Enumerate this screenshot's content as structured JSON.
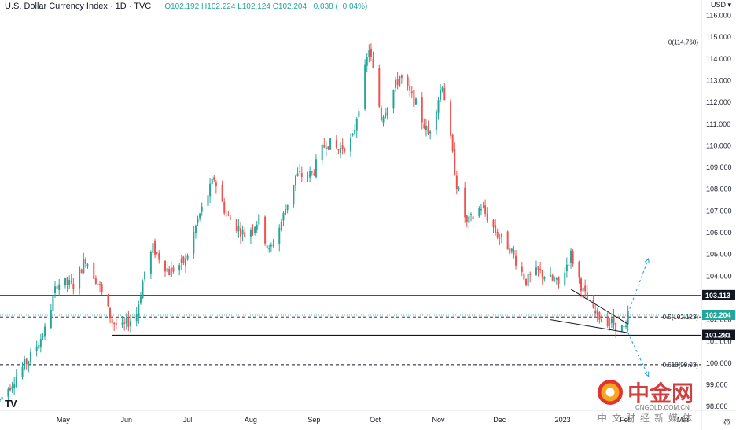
{
  "header": {
    "title": "U.S. Dollar Currency Index · 1D · TVC",
    "open": "O102.192",
    "high": "H102.224",
    "low": "L102.124",
    "close": "C102.204",
    "change": "−0.038 (−0.04%)"
  },
  "currency": "USD ▾",
  "watermark": {
    "brand": "中金网",
    "url": "CNGOLD.COM.CN",
    "sub": "中文财经新媒体"
  },
  "icons": {
    "settings": "gear-icon",
    "logo": "tradingview-logo"
  },
  "chart_data": {
    "type": "candlestick",
    "ylim": [
      97.9,
      116.2
    ],
    "y_ticks": [
      "116.000",
      "115.000",
      "114.000",
      "113.000",
      "112.000",
      "111.000",
      "110.000",
      "109.000",
      "108.000",
      "107.000",
      "106.000",
      "105.000",
      "104.000",
      "103.000",
      "102.000",
      "101.000",
      "100.000",
      "99.000",
      "98.000"
    ],
    "x_ticks": [
      {
        "label": "May",
        "date": "2022-05-01"
      },
      {
        "label": "Jun",
        "date": "2022-06-01"
      },
      {
        "label": "Jul",
        "date": "2022-07-01"
      },
      {
        "label": "Aug",
        "date": "2022-08-01"
      },
      {
        "label": "Sep",
        "date": "2022-09-01"
      },
      {
        "label": "Oct",
        "date": "2022-10-01"
      },
      {
        "label": "Nov",
        "date": "2022-11-01"
      },
      {
        "label": "Dec",
        "date": "2022-12-01"
      },
      {
        "label": "2023",
        "date": "2023-01-01"
      },
      {
        "label": "Feb",
        "date": "2023-02-01"
      },
      {
        "label": "Mar",
        "date": "2023-03-01"
      }
    ],
    "x_range": [
      "2022-03-31",
      "2023-03-10"
    ],
    "close_path": [
      [
        "2022-03-31",
        98.3
      ],
      [
        "2022-04-08",
        99.4
      ],
      [
        "2022-04-15",
        100.3
      ],
      [
        "2022-04-22",
        101.5
      ],
      [
        "2022-04-28",
        103.7
      ],
      [
        "2022-05-06",
        103.6
      ],
      [
        "2022-05-12",
        104.8
      ],
      [
        "2022-05-18",
        103.7
      ],
      [
        "2022-05-25",
        101.9
      ],
      [
        "2022-05-30",
        101.6
      ],
      [
        "2022-06-06",
        102.3
      ],
      [
        "2022-06-10",
        104.2
      ],
      [
        "2022-06-14",
        105.3
      ],
      [
        "2022-06-22",
        104.2
      ],
      [
        "2022-06-30",
        104.7
      ],
      [
        "2022-07-06",
        106.6
      ],
      [
        "2022-07-14",
        108.5
      ],
      [
        "2022-07-20",
        106.8
      ],
      [
        "2022-07-29",
        105.9
      ],
      [
        "2022-08-05",
        106.6
      ],
      [
        "2022-08-10",
        105.1
      ],
      [
        "2022-08-16",
        106.5
      ],
      [
        "2022-08-23",
        108.6
      ],
      [
        "2022-08-31",
        108.7
      ],
      [
        "2022-09-07",
        110.2
      ],
      [
        "2022-09-13",
        109.8
      ],
      [
        "2022-09-20",
        110.3
      ],
      [
        "2022-09-28",
        114.5
      ],
      [
        "2022-10-04",
        111.3
      ],
      [
        "2022-10-13",
        113.2
      ],
      [
        "2022-10-21",
        111.9
      ],
      [
        "2022-10-27",
        110.5
      ],
      [
        "2022-11-03",
        112.9
      ],
      [
        "2022-11-10",
        108.2
      ],
      [
        "2022-11-15",
        106.4
      ],
      [
        "2022-11-22",
        107.2
      ],
      [
        "2022-11-30",
        105.9
      ],
      [
        "2022-12-06",
        105.3
      ],
      [
        "2022-12-14",
        103.8
      ],
      [
        "2022-12-20",
        104.2
      ],
      [
        "2022-12-30",
        103.6
      ],
      [
        "2023-01-05",
        105.0
      ],
      [
        "2023-01-11",
        103.3
      ],
      [
        "2023-01-16",
        102.3
      ],
      [
        "2023-01-24",
        101.9
      ],
      [
        "2023-02-01",
        101.5
      ],
      [
        "2023-02-02",
        102.2
      ]
    ],
    "levels": [
      {
        "name": "fib-0",
        "value": 114.768,
        "label": "0(114.768)",
        "style": "dashed"
      },
      {
        "name": "fib-0.5",
        "value": 102.123,
        "label": "0.5(102.123)",
        "style": "dashed"
      },
      {
        "name": "fib-0.618",
        "value": 99.93,
        "label": "0.618(99.93)",
        "style": "dashed"
      },
      {
        "name": "resistance",
        "value": 103.113,
        "label": "103.113",
        "style": "solid"
      },
      {
        "name": "support",
        "value": 101.281,
        "label": "101.281",
        "style": "solid",
        "start": "2022-05-25"
      }
    ],
    "last_price": {
      "value": 102.204,
      "label": "102.204"
    },
    "triangle": {
      "upper": [
        [
          "2023-01-05",
          103.4
        ],
        [
          "2023-02-02",
          101.8
        ]
      ],
      "lower": [
        [
          "2022-12-26",
          102.0
        ],
        [
          "2023-02-02",
          101.4
        ]
      ]
    },
    "projections": [
      [
        [
          "2023-02-02",
          102.3
        ],
        [
          "2023-02-12",
          104.8
        ]
      ],
      [
        [
          "2023-02-02",
          101.4
        ],
        [
          "2023-02-12",
          99.4
        ]
      ]
    ],
    "colors": {
      "up": "#26a69a",
      "down": "#ef5350",
      "line": "#131722",
      "last": "#26a69a",
      "proj": "#2196f3"
    }
  }
}
